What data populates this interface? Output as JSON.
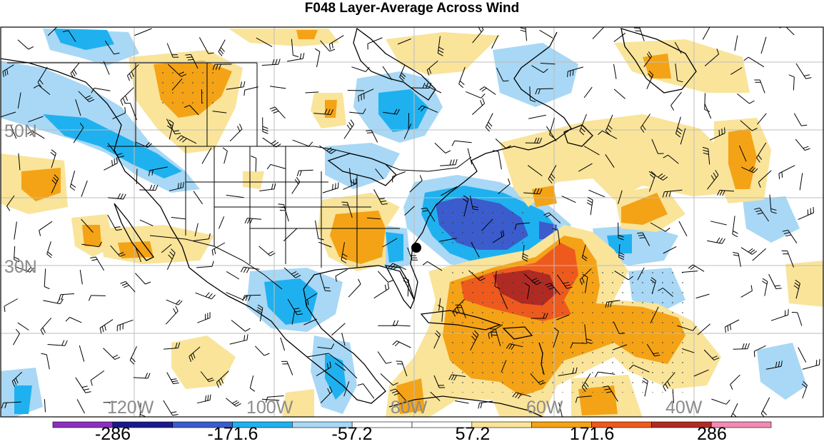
{
  "title": "F048 Layer-Average Across Wind",
  "lat_labels": [
    {
      "label": "50N",
      "lat": 50
    },
    {
      "label": "30N",
      "lat": 30
    }
  ],
  "lon_labels": [
    {
      "label": "120W",
      "lon": -120
    },
    {
      "label": "100W",
      "lon": -100
    },
    {
      "label": "80W",
      "lon": -80
    },
    {
      "label": "60W",
      "lon": -60
    },
    {
      "label": "40W",
      "lon": -40
    }
  ],
  "colorbar": {
    "colors": [
      "#8c2fbf",
      "#1a1a8c",
      "#3b5ccc",
      "#1fb1ef",
      "#a8d8f5",
      "#ffffff",
      "#ffffff",
      "#f9e49a",
      "#f4a316",
      "#ee5a1e",
      "#b02a24",
      "#f28bb3"
    ],
    "labels": [
      "-286",
      "-171.6",
      "-57.2",
      "57.2",
      "171.6",
      "286"
    ]
  },
  "marker": {
    "name": "station-dot",
    "lat": 32.5,
    "lon": -80.6
  }
}
